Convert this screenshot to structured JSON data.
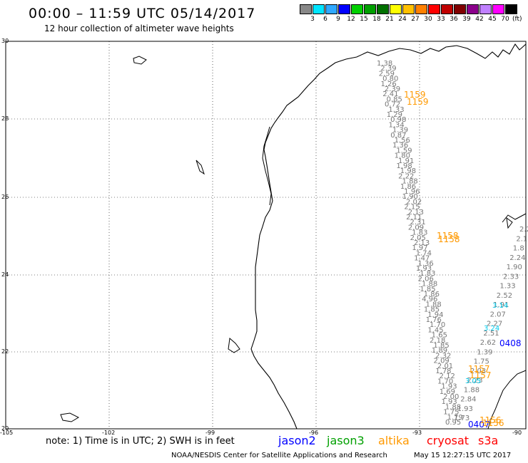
{
  "header": {
    "title": "00:00 – 11:59 UTC 05/14/2017",
    "subtitle": "12 hour collection of altimeter wave heights"
  },
  "color_scale": {
    "ticks": [
      "3",
      "6",
      "9",
      "12",
      "15",
      "18",
      "21",
      "24",
      "27",
      "30",
      "33",
      "36",
      "39",
      "42",
      "45",
      "70"
    ],
    "unit": "(ft)",
    "colors": [
      "#888888",
      "#00e5ff",
      "#2fa8ff",
      "#0000ff",
      "#00d000",
      "#00a000",
      "#007000",
      "#ffff00",
      "#ffc000",
      "#ff8000",
      "#ff0000",
      "#c00000",
      "#800000",
      "#8b008b",
      "#c080ff",
      "#ff00ff",
      "#000000"
    ]
  },
  "axes": {
    "lat_labels": [
      "30",
      "28",
      "26",
      "24",
      "22",
      "20"
    ],
    "lon_labels": [
      "-105",
      "-102",
      "-99",
      "-96",
      "-93",
      "-90"
    ]
  },
  "tracks": {
    "grey_west": [
      "1.38",
      "2.39",
      "2.59",
      "0.80",
      "1.26",
      "2.39",
      "2.41",
      "0.85",
      "0.72",
      "1.33",
      "1.29",
      "0.98",
      "1.34",
      "1.39",
      "0.87",
      "1.56",
      "1.36",
      "1.59",
      "1.80",
      "1.91",
      "1.98",
      "1.98",
      "2.22",
      "1.88",
      "1.86",
      "1.96",
      "1.90",
      "2.02",
      "2.15",
      "2.13",
      "2.11",
      "2.31",
      "2.09",
      "1.83",
      "2.05",
      "2.13",
      "1.97",
      "1.74",
      "1.47",
      "1.36",
      "1.93",
      "1.83",
      "2.06",
      "1.88",
      "1.85",
      "1.86",
      "4.96",
      "1.88",
      "1.85",
      "1.94",
      "1.76",
      "1.70",
      "1.45",
      "1.65",
      "2.18",
      "1.85",
      "1.89",
      "2.32",
      "2.09",
      "2.01",
      "1.78",
      "2.12",
      "1.70",
      "1.93",
      "1.69",
      "2.00",
      "1.93",
      "1.88",
      "1.75",
      "1.79",
      "0.95"
    ],
    "grey_east": [
      "2.2",
      "2.1",
      "1.8",
      "2.24",
      "1.90",
      "2.33",
      "1.33",
      "2.52",
      "1.91",
      "2.07",
      "2.27",
      "2.51",
      "2.62",
      "1.39",
      "1.75",
      "2.03",
      "2.23",
      "1.88",
      "2.84",
      "1.93",
      "1.73"
    ],
    "cyan": [
      "3.14",
      "3.24",
      "3.05"
    ],
    "blue": [
      "0408",
      "0407"
    ],
    "orange": [
      "1159",
      "1159",
      "1158",
      "1158",
      "1157",
      "1157",
      "1156",
      "1156"
    ]
  },
  "legend": {
    "note": "note:  1) Time is in UTC;  2) SWH is in feet",
    "satellites": [
      {
        "name": "jason2",
        "color": "#0000ff"
      },
      {
        "name": "jason3",
        "color": "#00a000"
      },
      {
        "name": "altika",
        "color": "#ff9900"
      },
      {
        "name": "cryosat",
        "color": "#ff0000"
      },
      {
        "name": "s3a",
        "color": "#ff0000"
      }
    ]
  },
  "footer": {
    "credit": "NOAA/NESDIS Center for Satellite Applications and Research",
    "timestamp": "May 15 12:27:15 UTC 2017"
  }
}
